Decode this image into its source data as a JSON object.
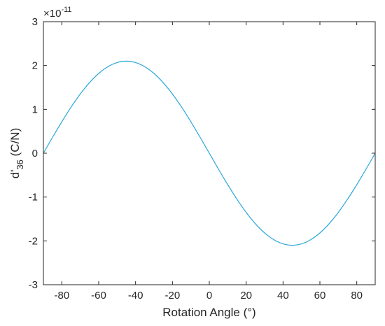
{
  "chart_data": {
    "type": "line",
    "title": "",
    "xlabel": "Rotation Angle (°)",
    "ylabel": {
      "main": "d'",
      "sub": "36",
      "unit": " (C/N)"
    },
    "y_exponent": {
      "base": "×10",
      "power": "-11"
    },
    "xlim": [
      -90,
      90
    ],
    "ylim": [
      -3,
      3
    ],
    "x_ticks": [
      -80,
      -60,
      -40,
      -20,
      0,
      20,
      40,
      60,
      80
    ],
    "y_ticks": [
      -3,
      -2,
      -1,
      0,
      1,
      2,
      3
    ],
    "grid": false,
    "colors": {
      "line": "#2aa7d9",
      "axes": "#262626"
    },
    "series": [
      {
        "x": [
          -90,
          -85,
          -80,
          -75,
          -70,
          -65,
          -60,
          -55,
          -50,
          -45,
          -40,
          -35,
          -30,
          -25,
          -20,
          -15,
          -10,
          -5,
          0,
          5,
          10,
          15,
          20,
          25,
          30,
          35,
          40,
          45,
          50,
          55,
          60,
          65,
          70,
          75,
          80,
          85,
          90
        ],
        "y": [
          0,
          0.365,
          0.718,
          1.05,
          1.35,
          1.609,
          1.819,
          1.973,
          2.068,
          2.1,
          2.068,
          1.973,
          1.819,
          1.609,
          1.35,
          1.05,
          0.718,
          0.365,
          0,
          -0.365,
          -0.718,
          -1.05,
          -1.35,
          -1.609,
          -1.819,
          -1.973,
          -2.068,
          -2.1,
          -2.068,
          -1.973,
          -1.819,
          -1.609,
          -1.35,
          -1.05,
          -0.718,
          -0.365,
          0
        ]
      }
    ]
  }
}
